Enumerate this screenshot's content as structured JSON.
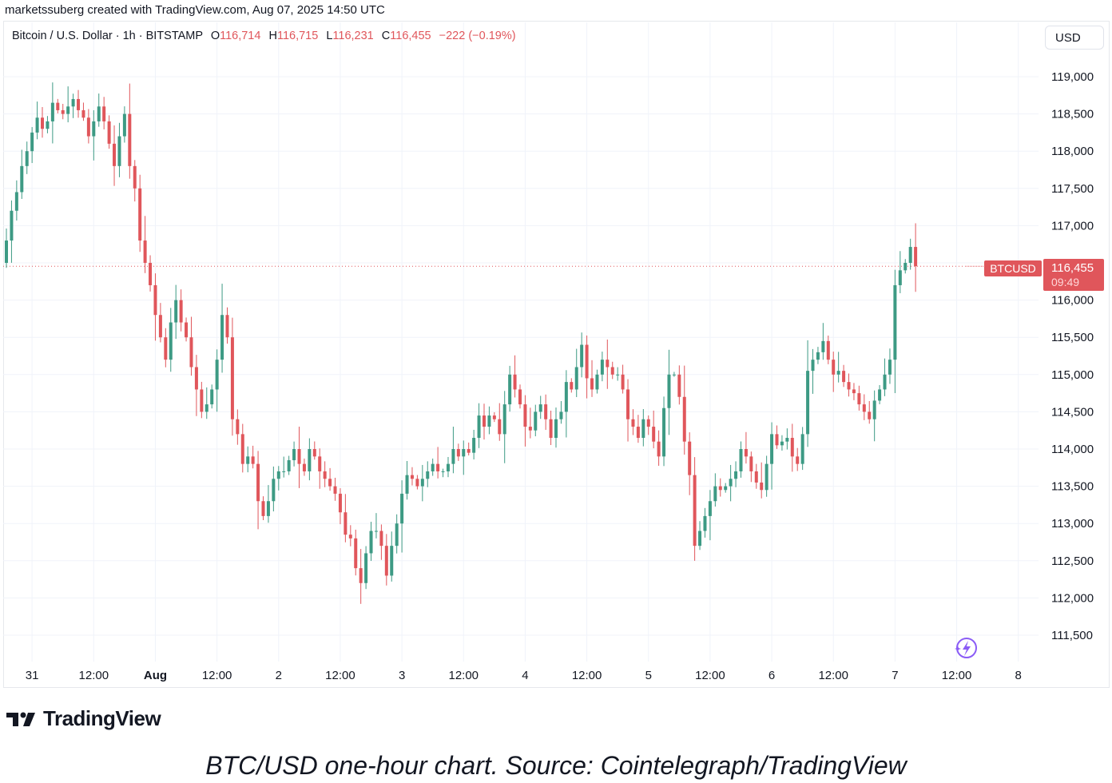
{
  "header": {
    "text": "marketssuberg created with TradingView.com, Aug 07, 2025 14:50 UTC"
  },
  "legend": {
    "symbol": "Bitcoin / U.S. Dollar · 1h · BITSTAMP",
    "o_label": "O",
    "o_value": "116,714",
    "h_label": "H",
    "h_value": "116,715",
    "l_label": "L",
    "l_value": "116,231",
    "c_label": "C",
    "c_value": "116,455",
    "change": "−222 (−0.19%)"
  },
  "currency_button": "USD",
  "price_tag": {
    "symbol": "BTCUSD",
    "price": "116,455",
    "countdown": "09:49"
  },
  "brand": {
    "name": "TradingView"
  },
  "caption": "BTC/USD one-hour chart. Source: Cointelegraph/TradingView",
  "colors": {
    "up": "#3d9a84",
    "down": "#e0565b",
    "tag": "#e0565b",
    "grid": "#f0f3fa",
    "text": "#131722"
  },
  "chart_data": {
    "type": "candlestick",
    "interval": "1h",
    "ylim": [
      111300,
      119700
    ],
    "y_ticks": [
      111500,
      112000,
      112500,
      113000,
      113500,
      114000,
      114500,
      115000,
      115500,
      116000,
      116500,
      117000,
      117500,
      118000,
      118500,
      119000
    ],
    "y_tick_labels": [
      "111,500",
      "112,000",
      "112,500",
      "113,000",
      "113,500",
      "114,000",
      "114,500",
      "115,000",
      "115,500",
      "116,000",
      "116,500",
      "117,000",
      "117,500",
      "118,000",
      "118,500",
      "119,000"
    ],
    "x_ticks": [
      {
        "label": "31",
        "hour": 5,
        "bold": false
      },
      {
        "label": "12:00",
        "hour": 17,
        "bold": false
      },
      {
        "label": "Aug",
        "hour": 29,
        "bold": true
      },
      {
        "label": "12:00",
        "hour": 41,
        "bold": false
      },
      {
        "label": "2",
        "hour": 53,
        "bold": false
      },
      {
        "label": "12:00",
        "hour": 65,
        "bold": false
      },
      {
        "label": "3",
        "hour": 77,
        "bold": false
      },
      {
        "label": "12:00",
        "hour": 89,
        "bold": false
      },
      {
        "label": "4",
        "hour": 101,
        "bold": false
      },
      {
        "label": "12:00",
        "hour": 113,
        "bold": false
      },
      {
        "label": "5",
        "hour": 125,
        "bold": false
      },
      {
        "label": "12:00",
        "hour": 137,
        "bold": false
      },
      {
        "label": "6",
        "hour": 149,
        "bold": false
      },
      {
        "label": "12:00",
        "hour": 161,
        "bold": false
      },
      {
        "label": "7",
        "hour": 173,
        "bold": false
      },
      {
        "label": "12:00",
        "hour": 185,
        "bold": false
      },
      {
        "label": "8",
        "hour": 197,
        "bold": false
      }
    ],
    "last_price": 116455,
    "closes": [
      116800,
      117200,
      117450,
      117800,
      118000,
      118250,
      118450,
      118300,
      118400,
      118650,
      118550,
      118500,
      118600,
      118700,
      118550,
      118450,
      118200,
      118400,
      118600,
      118400,
      118100,
      117800,
      118200,
      118500,
      117800,
      117500,
      116800,
      116500,
      116200,
      115800,
      115500,
      115200,
      115700,
      116000,
      115700,
      115500,
      115100,
      114800,
      114500,
      114600,
      114800,
      115200,
      115800,
      115500,
      114400,
      114200,
      113800,
      113900,
      113800,
      113300,
      113100,
      113300,
      113600,
      113700,
      113700,
      113850,
      114000,
      113800,
      113700,
      114000,
      113900,
      113700,
      113600,
      113500,
      113400,
      113150,
      112850,
      112800,
      112400,
      112200,
      112600,
      112900,
      112900,
      112700,
      112300,
      112700,
      113000,
      113400,
      113650,
      113600,
      113500,
      113600,
      113700,
      113800,
      113700,
      113700,
      113800,
      114000,
      113900,
      114000,
      113950,
      114150,
      114450,
      114300,
      114450,
      114400,
      114200,
      114600,
      115000,
      114800,
      114600,
      114300,
      114250,
      114500,
      114600,
      114400,
      114150,
      114400,
      114500,
      114900,
      114800,
      115100,
      115400,
      114950,
      114800,
      115000,
      115200,
      115100,
      115000,
      115000,
      114800,
      114400,
      114300,
      114150,
      114400,
      114300,
      114100,
      113900,
      114550,
      115000,
      115000,
      114700,
      114100,
      113650,
      112700,
      112900,
      113100,
      113300,
      113500,
      113450,
      113500,
      113600,
      113700,
      114000,
      113900,
      113700,
      113550,
      113450,
      113800,
      114200,
      114050,
      114100,
      114150,
      113900,
      113800,
      114200,
      115050,
      115200,
      115300,
      115450,
      115200,
      115000,
      115050,
      114900,
      114800,
      114750,
      114600,
      114500,
      114400,
      114650,
      114800,
      115000,
      115200,
      116200,
      116400,
      116500,
      116714,
      116455
    ]
  }
}
